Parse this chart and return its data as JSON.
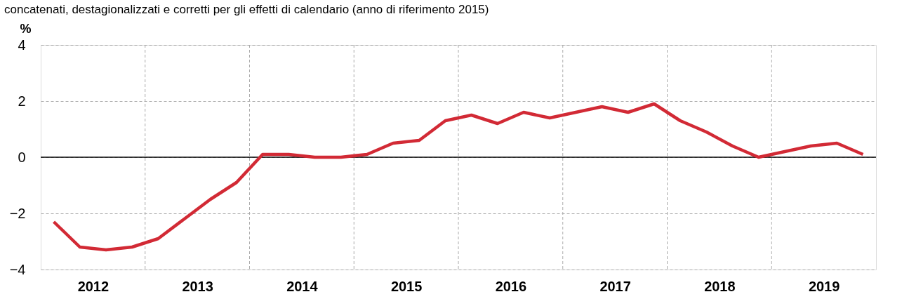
{
  "chart_data": {
    "type": "line",
    "subtitle": "concatenati, destagionalizzati e corretti per gli effetti di calendario (anno di riferimento 2015)",
    "ylabel": "%",
    "x": [
      2012.125,
      2012.375,
      2012.625,
      2012.875,
      2013.125,
      2013.375,
      2013.625,
      2013.875,
      2014.125,
      2014.375,
      2014.625,
      2014.875,
      2015.125,
      2015.375,
      2015.625,
      2015.875,
      2016.125,
      2016.375,
      2016.625,
      2016.875,
      2017.125,
      2017.375,
      2017.625,
      2017.875,
      2018.125,
      2018.375,
      2018.625,
      2018.875,
      2019.125,
      2019.375,
      2019.625,
      2019.875
    ],
    "series": [
      {
        "color": "#d22a35",
        "values": [
          -2.3,
          -3.2,
          -3.3,
          -3.2,
          -2.9,
          -2.2,
          -1.5,
          -0.9,
          0.1,
          0.1,
          0.0,
          0.0,
          0.1,
          0.5,
          0.6,
          1.3,
          1.5,
          1.2,
          1.6,
          1.4,
          1.6,
          1.8,
          1.6,
          1.9,
          1.3,
          0.9,
          0.4,
          0.0,
          0.2,
          0.4,
          0.5,
          0.1
        ]
      }
    ],
    "xlim": [
      2012,
      2020
    ],
    "xticks": [
      {
        "value": 2012.5,
        "label": "2012"
      },
      {
        "value": 2013,
        "label": null
      },
      {
        "value": 2013.5,
        "label": "2013"
      },
      {
        "value": 2014,
        "label": null
      },
      {
        "value": 2014.5,
        "label": "2014"
      },
      {
        "value": 2015,
        "label": null
      },
      {
        "value": 2015.5,
        "label": "2015"
      },
      {
        "value": 2016,
        "label": null
      },
      {
        "value": 2016.5,
        "label": "2016"
      },
      {
        "value": 2017,
        "label": null
      },
      {
        "value": 2017.5,
        "label": "2017"
      },
      {
        "value": 2018,
        "label": null
      },
      {
        "value": 2018.5,
        "label": "2018"
      },
      {
        "value": 2019,
        "label": null
      },
      {
        "value": 2019.5,
        "label": "2019"
      }
    ],
    "ylim": [
      -4,
      4
    ],
    "yticks": [
      -4,
      -2,
      0,
      2,
      4
    ],
    "grid": true,
    "line_style": "solid",
    "marker": "none",
    "ref_lines": [
      {
        "axis": "y",
        "value": 0,
        "color": "#000000"
      }
    ]
  }
}
